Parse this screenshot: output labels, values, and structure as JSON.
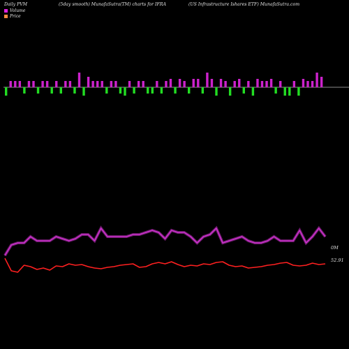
{
  "header": {
    "left": "Daily PVM",
    "middle": "(5day smooth) MunafaSutra(TM) charts for IFRA",
    "right": "(US Infrastructure   Ishares ETF) MunafaSutra.com"
  },
  "legend": [
    {
      "label": "Volume",
      "color": "#e020e0"
    },
    {
      "label": "Price",
      "color": "#ff8a40"
    }
  ],
  "colors": {
    "volume_up": "#cc22cc",
    "volume_down": "#22dd22",
    "volume_line": "#cc33cc",
    "price_line": "#ff2020",
    "baseline": "#bbbbbb"
  },
  "chart_data": {
    "type": "line",
    "bars": {
      "description_series": "PVM volume bars",
      "values": [
        -4,
        3,
        3,
        3,
        -3,
        3,
        3,
        -3,
        3,
        3,
        -3,
        3,
        -3,
        3,
        3,
        -3,
        7,
        -4,
        5,
        3,
        3,
        3,
        -3,
        3,
        3,
        -3,
        -4,
        3,
        -3,
        3,
        3,
        -3,
        -3,
        3,
        -3,
        3,
        4,
        -3,
        4,
        3,
        -3,
        4,
        4,
        -3,
        7,
        4,
        -4,
        4,
        3,
        -4,
        3,
        4,
        -3,
        3,
        -4,
        4,
        3,
        3,
        4,
        -3,
        3,
        -4,
        -4,
        3,
        -4,
        4,
        3,
        3,
        7,
        5
      ]
    },
    "series": [
      {
        "name": "Volume",
        "values": [
          15,
          10,
          9,
          9,
          6,
          8,
          8,
          8,
          6,
          7,
          8,
          7,
          5,
          5,
          8,
          2,
          6,
          6,
          6,
          6,
          5,
          5,
          4,
          3,
          4,
          7,
          3,
          4,
          4,
          6,
          9,
          6,
          5,
          2,
          9,
          8,
          7,
          6,
          8,
          9,
          9,
          8,
          6,
          8,
          8,
          8,
          3,
          9,
          6,
          2,
          6
        ]
      },
      {
        "name": "Price",
        "values": [
          0,
          18,
          20,
          10,
          12,
          16,
          14,
          17,
          11,
          12,
          8,
          10,
          9,
          12,
          14,
          15,
          13,
          12,
          10,
          9,
          8,
          13,
          12,
          8,
          6,
          8,
          5,
          9,
          12,
          10,
          11,
          8,
          9,
          6,
          5,
          10,
          12,
          11,
          14,
          13,
          12,
          10,
          9,
          7,
          6,
          10,
          11,
          10,
          7,
          9,
          8
        ],
        "last_label": "52.91"
      }
    ],
    "volume_label": "0M",
    "price_label": "52.91"
  }
}
